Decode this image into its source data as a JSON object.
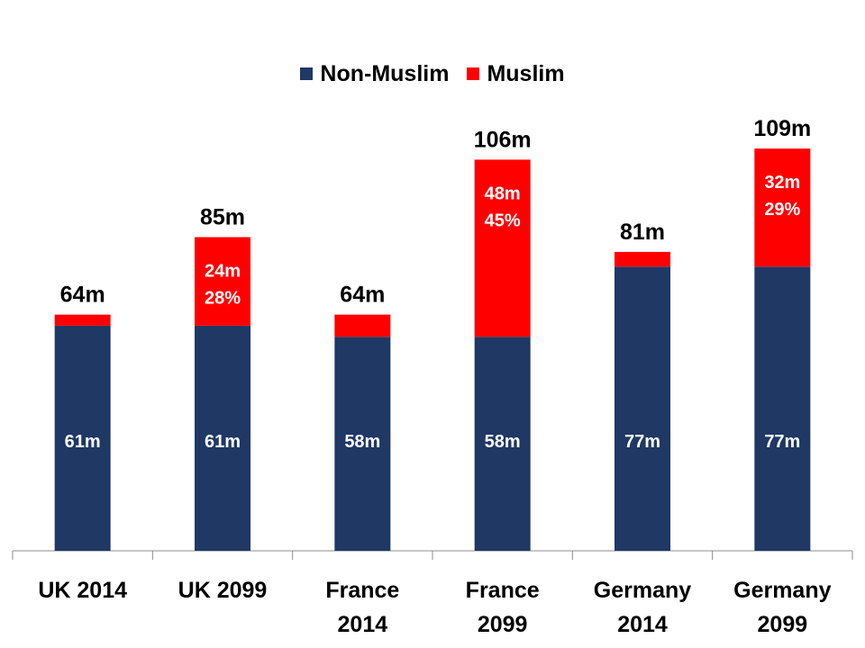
{
  "chart_data": {
    "type": "bar",
    "stacked": true,
    "title": "",
    "xlabel": "",
    "ylabel": "",
    "ylim": [
      0,
      120
    ],
    "grid": false,
    "legend_position": "top-center",
    "categories": [
      [
        "UK 2014"
      ],
      [
        "UK 2099"
      ],
      [
        "France",
        "2014"
      ],
      [
        "France",
        "2099"
      ],
      [
        "Germany",
        "2014"
      ],
      [
        "Germany",
        "2099"
      ]
    ],
    "series": [
      {
        "name": "Non-Muslim",
        "color": "#1f3864",
        "values": [
          61,
          61,
          58,
          58,
          77,
          77
        ],
        "labels": [
          [
            "61m"
          ],
          [
            "61m"
          ],
          [
            "58m"
          ],
          [
            "58m"
          ],
          [
            "77m"
          ],
          [
            "77m"
          ]
        ]
      },
      {
        "name": "Muslim",
        "color": "#ff0000",
        "values": [
          3,
          24,
          6,
          48,
          4,
          32
        ],
        "labels": [
          [],
          [
            "24m",
            "28%"
          ],
          [],
          [
            "48m",
            "45%"
          ],
          [],
          [
            "32m",
            "29%"
          ]
        ]
      }
    ],
    "totals": [
      "64m",
      "85m",
      "64m",
      "106m",
      "81m",
      "109m"
    ]
  }
}
